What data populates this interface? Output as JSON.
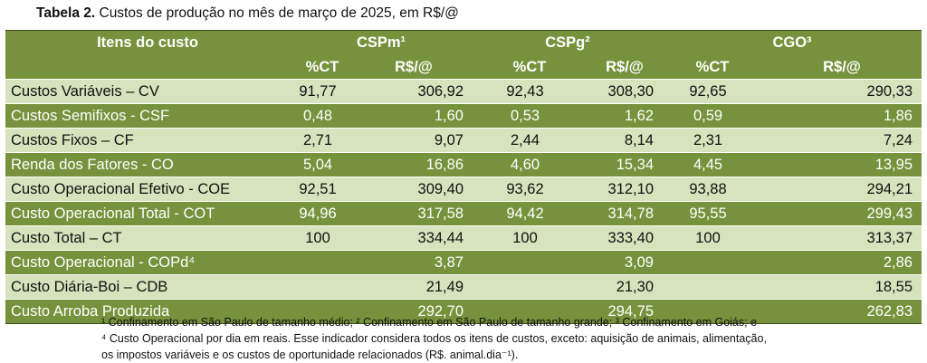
{
  "caption": {
    "prefix": "Tabela 2.",
    "text": " Custos de produção no mês de março de 2025, em R$/@"
  },
  "header": {
    "items_label": "Itens do custo",
    "groups": [
      "CSPm¹",
      "CSPg²",
      "CGO³"
    ],
    "sub": {
      "pct": "%CT",
      "rs": "R$/@"
    }
  },
  "rows": [
    {
      "label": "Custos Variáveis – CV",
      "style": "light",
      "v": [
        "91,77",
        "306,92",
        "92,43",
        "308,30",
        "92,65",
        "290,33"
      ]
    },
    {
      "label": "Custos Semifixos - CSF",
      "style": "dark",
      "v": [
        "0,48",
        "1,60",
        "0,53",
        "1,62",
        "0,59",
        "1,86"
      ]
    },
    {
      "label": "Custos Fixos – CF",
      "style": "light",
      "v": [
        "2,71",
        "9,07",
        "2,44",
        "8,14",
        "2,31",
        "7,24"
      ]
    },
    {
      "label": "Renda dos Fatores - CO",
      "style": "dark",
      "v": [
        "5,04",
        "16,86",
        "4,60",
        "15,34",
        "4,45",
        "13,95"
      ]
    },
    {
      "label": "Custo Operacional Efetivo - COE",
      "style": "light",
      "v": [
        "92,51",
        "309,40",
        "93,62",
        "312,10",
        "93,88",
        "294,21"
      ]
    },
    {
      "label": "Custo Operacional Total - COT",
      "style": "dark",
      "v": [
        "94,96",
        "317,58",
        "94,42",
        "314,78",
        "95,55",
        "299,43"
      ]
    },
    {
      "label": "Custo Total – CT",
      "style": "light",
      "v": [
        "100",
        "334,44",
        "100",
        "333,40",
        "100",
        "313,37"
      ]
    },
    {
      "label": "Custo Operacional - COPd⁴",
      "style": "dark",
      "v": [
        "",
        "3,87",
        "",
        "3,09",
        "",
        "2,86"
      ]
    },
    {
      "label": "Custo Diária-Boi – CDB",
      "style": "light",
      "v": [
        "",
        "21,49",
        "",
        "21,30",
        "",
        "18,55"
      ]
    },
    {
      "label": "Custo Arroba Produzida",
      "style": "dark",
      "v": [
        "",
        "292,70",
        "",
        "294,75",
        "",
        "262,83"
      ]
    }
  ],
  "footnotes": [
    "¹ Confinamento em São Paulo de tamanho médio; ² Confinamento em São Paulo de tamanho grande; ³ Confinamento em Goiás; e",
    "⁴ Custo Operacional por dia em reais. Esse indicador considera todos os itens de custos, exceto: aquisição de animais, alimentação,",
    "os impostos variáveis e os custos de oportunidade relacionados (R$. animal.dia⁻¹)."
  ],
  "colors": {
    "dark_green": "#76923c",
    "light_green": "#d6e3bc"
  }
}
